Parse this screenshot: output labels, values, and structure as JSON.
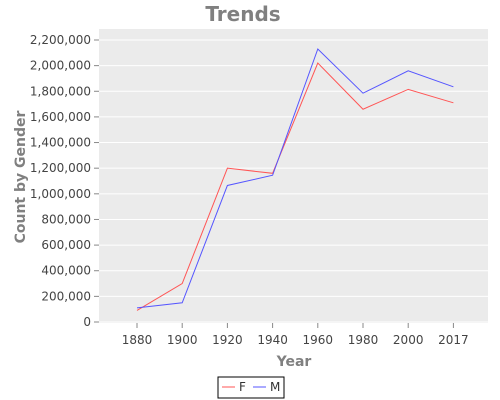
{
  "chart_data": {
    "type": "line",
    "title": "Trends",
    "xlabel": "Year",
    "ylabel": "Count by Gender",
    "categories": [
      "1880",
      "1900",
      "1920",
      "1940",
      "1960",
      "1980",
      "2000",
      "2017"
    ],
    "ylim": [
      0,
      2200000
    ],
    "yticks": [
      "0",
      "200,000",
      "400,000",
      "600,000",
      "800,000",
      "1,000,000",
      "1,200,000",
      "1,400,000",
      "1,600,000",
      "1,800,000",
      "2,000,000",
      "2,200,000"
    ],
    "series": [
      {
        "name": "F",
        "color": "#ff5555",
        "values": [
          90000,
          300000,
          1200000,
          1160000,
          2020000,
          1660000,
          1815000,
          1710000
        ]
      },
      {
        "name": "M",
        "color": "#5555ff",
        "values": [
          110000,
          150000,
          1065000,
          1145000,
          2130000,
          1785000,
          1960000,
          1835000
        ]
      }
    ],
    "grid": true,
    "legend_position": "bottom"
  }
}
